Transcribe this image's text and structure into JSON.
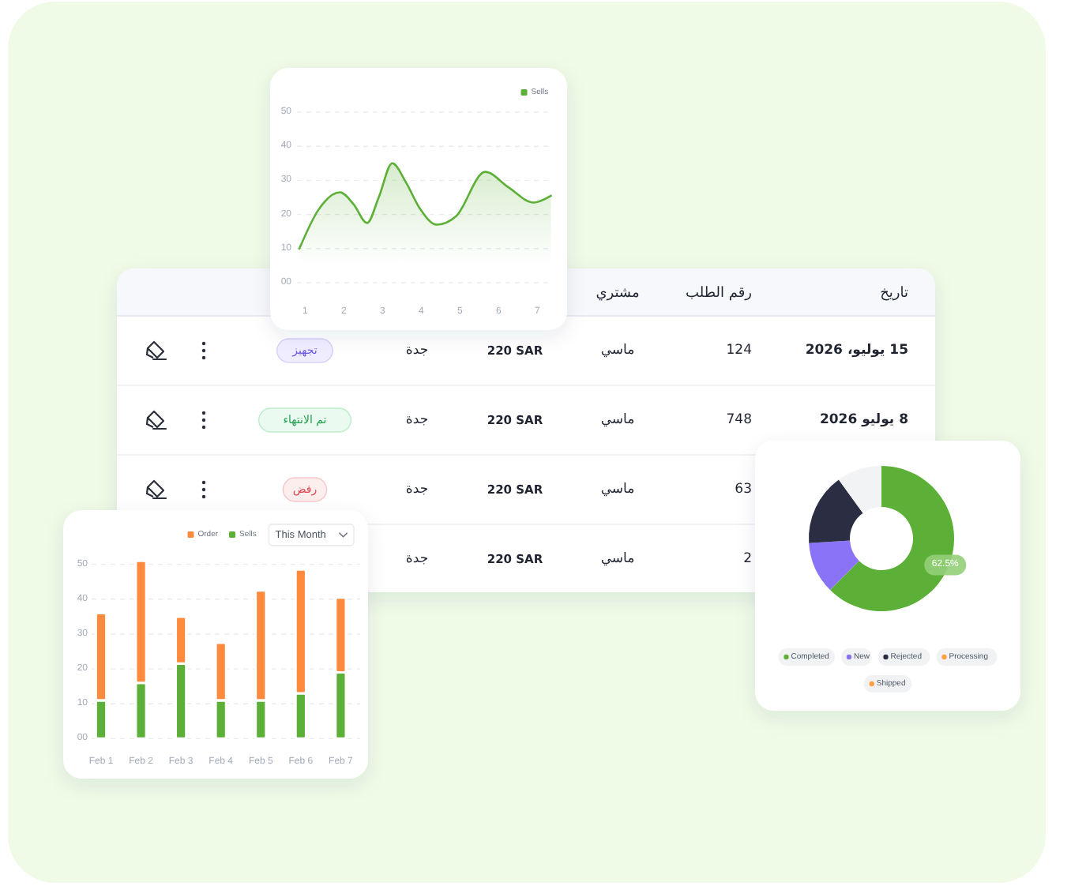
{
  "chart_data": [
    {
      "type": "area",
      "x": [
        0.85,
        1.35,
        1.9,
        2.25,
        2.6,
        2.9,
        3.25,
        3.6,
        3.95,
        4.4,
        4.9,
        5.65,
        6.25,
        6.9,
        7.35
      ],
      "series": [
        {
          "name": "Sells",
          "color": "#5DB037",
          "values": [
            10,
            21.5,
            26.5,
            23,
            17.5,
            25,
            35,
            29.5,
            22,
            17,
            19.5,
            32.5,
            28,
            23.5,
            25.5
          ]
        }
      ],
      "xlim": [
        0.8,
        7.4
      ],
      "xticks": [
        1,
        2,
        3,
        4,
        5,
        6,
        7
      ],
      "ylim": [
        0,
        50
      ],
      "yticks": [
        {
          "value": 0,
          "label": "00"
        },
        10,
        20,
        30,
        40,
        50
      ],
      "grid": "y",
      "legend": "top right"
    },
    {
      "type": "other",
      "annotations": [
        "تاريخ",
        "رقم الطلب",
        "مشتري",
        "15 يوليو، 2026",
        "124",
        "ماسي",
        "220 SAR",
        "جدة",
        "تجهيز",
        "8 يوليو 2026",
        "748",
        "ماسي",
        "220 SAR",
        "جدة",
        "تم الانتهاء",
        "63",
        "ماسي",
        "220 SAR",
        "جدة",
        "رفض",
        "2",
        "ماسي",
        "220 SAR",
        "جدة"
      ]
    },
    {
      "type": "bar",
      "categories": [
        "Feb 1",
        "Feb 2",
        "Feb 3",
        "Feb 4",
        "Feb 5",
        "Feb 6",
        "Feb 7"
      ],
      "series": [
        {
          "name": "Sells",
          "color": "#5DB037",
          "values": [
            11,
            16,
            21.5,
            11,
            11,
            13,
            19
          ]
        },
        {
          "name": "Order",
          "color": "#FF8A3D",
          "values": [
            25,
            35,
            13.5,
            16.5,
            31.5,
            35.5,
            21.5
          ]
        }
      ],
      "stacked": true,
      "ylim": [
        0,
        52
      ],
      "yticks": [
        {
          "value": 0,
          "label": "00"
        },
        10,
        20,
        30,
        40,
        50
      ],
      "grid": "y",
      "legend": "top right",
      "annotations": [
        "This Month"
      ]
    },
    {
      "type": "donut",
      "categories": [
        "Completed",
        "New",
        "Rejected",
        "Processing",
        "Shipped",
        null
      ],
      "values": [
        62.5,
        11.5,
        16,
        0,
        0,
        10
      ],
      "colors": [
        "#5DB037",
        "#8B73F7",
        "#2B2D42",
        "#FF9F43",
        "#FF9F43",
        "#F2F3F5"
      ],
      "value_labels": [
        "62.5%",
        null,
        null,
        null,
        null,
        null
      ],
      "legend": "bottom"
    }
  ]
}
